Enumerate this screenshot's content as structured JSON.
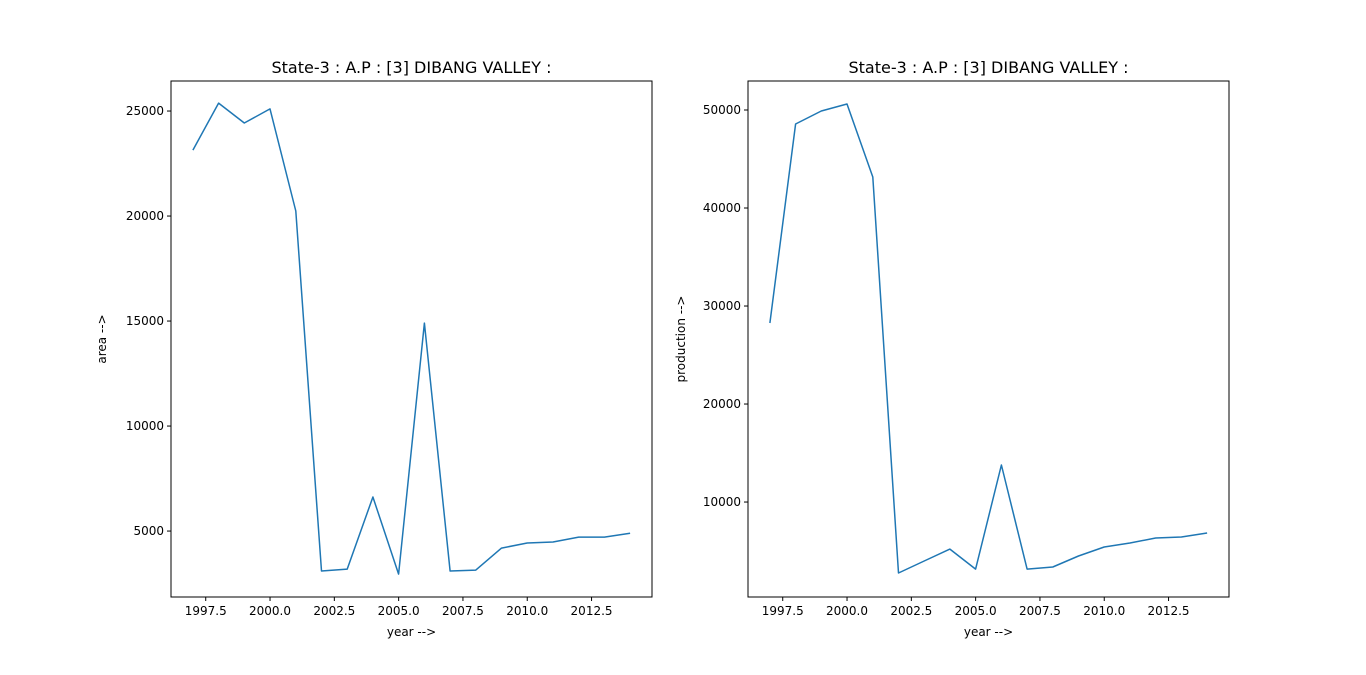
{
  "chart_data": [
    {
      "type": "line",
      "title": "State-3 : A.P : [3] DIBANG VALLEY :",
      "xlabel": "year -->",
      "ylabel": "area -->",
      "x": [
        1997,
        1998,
        1999,
        2000,
        2001,
        2002,
        2003,
        2004,
        2005,
        2006,
        2007,
        2008,
        2009,
        2010,
        2011,
        2012,
        2013,
        2014
      ],
      "series": [
        {
          "name": "area",
          "color": "#1f77b4",
          "values": [
            23140,
            25380,
            24430,
            25100,
            20240,
            3100,
            3190,
            6620,
            2950,
            14900,
            3100,
            3140,
            4190,
            4430,
            4480,
            4710,
            4710,
            4900
          ]
        }
      ],
      "xlim": [
        1996.15,
        2014.85
      ],
      "ylim": [
        1860,
        26430
      ],
      "xticks": [
        1997.5,
        2000.0,
        2002.5,
        2005.0,
        2007.5,
        2010.0,
        2012.5
      ],
      "xtick_labels": [
        "1997.5",
        "2000.0",
        "2002.5",
        "2005.0",
        "2007.5",
        "2010.0",
        "2012.5"
      ],
      "yticks": [
        5000,
        10000,
        15000,
        20000,
        25000
      ],
      "ytick_labels": [
        "5000",
        "10000",
        "15000",
        "20000",
        "25000"
      ],
      "grid": false
    },
    {
      "type": "line",
      "title": "State-3 : A.P : [3] DIBANG VALLEY :",
      "xlabel": "year -->",
      "ylabel": "production -->",
      "x": [
        1997,
        1998,
        1999,
        2000,
        2001,
        2002,
        2003,
        2004,
        2005,
        2006,
        2007,
        2008,
        2009,
        2010,
        2011,
        2012,
        2013,
        2014
      ],
      "series": [
        {
          "name": "production",
          "color": "#1f77b4",
          "values": [
            28270,
            48570,
            49900,
            50610,
            43160,
            2760,
            3980,
            5200,
            3160,
            13780,
            3160,
            3370,
            4490,
            5410,
            5820,
            6330,
            6430,
            6840
          ]
        }
      ],
      "xlim": [
        1996.15,
        2014.85
      ],
      "ylim": [
        310,
        52960
      ],
      "xticks": [
        1997.5,
        2000.0,
        2002.5,
        2005.0,
        2007.5,
        2010.0,
        2012.5
      ],
      "xtick_labels": [
        "1997.5",
        "2000.0",
        "2002.5",
        "2005.0",
        "2007.5",
        "2010.0",
        "2012.5"
      ],
      "yticks": [
        10000,
        20000,
        30000,
        40000,
        50000
      ],
      "ytick_labels": [
        "10000",
        "20000",
        "30000",
        "40000",
        "50000"
      ],
      "grid": false
    }
  ]
}
